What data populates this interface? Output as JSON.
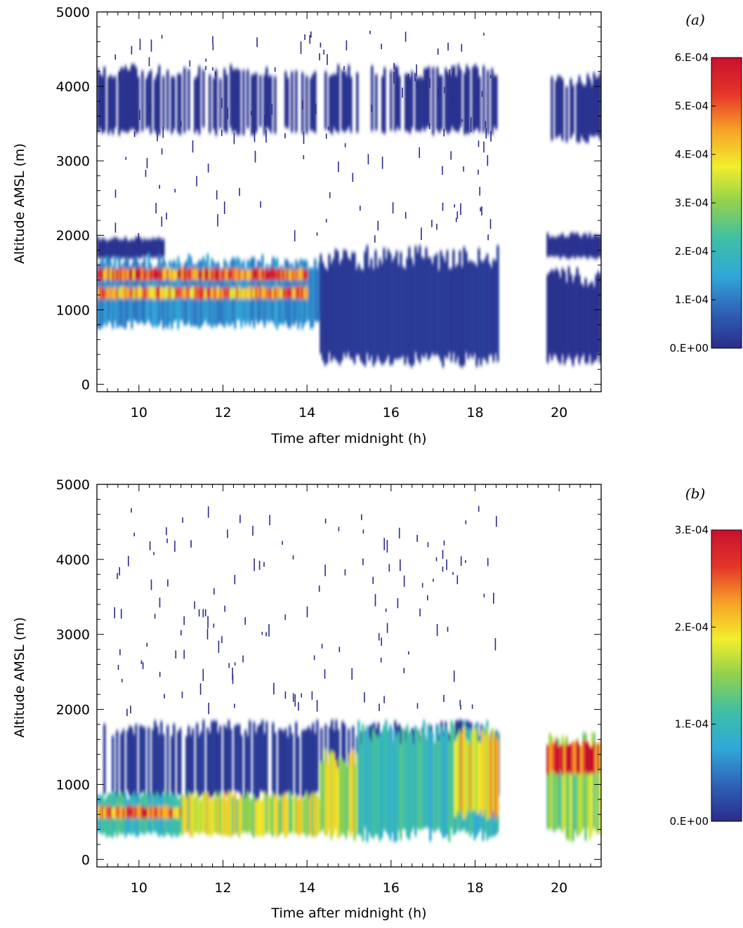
{
  "chart_data": [
    {
      "type": "heatmap",
      "panel_label": "(a)",
      "xlabel": "Time after midnight (h)",
      "ylabel": "Altitude AMSL (m)",
      "xlim": [
        9.0,
        21.0
      ],
      "ylim": [
        -100,
        5000
      ],
      "x_ticks": [
        "10",
        "12",
        "14",
        "16",
        "18",
        "20"
      ],
      "x_tick_values": [
        10,
        12,
        14,
        16,
        18,
        20
      ],
      "y_ticks": [
        "0",
        "1000",
        "2000",
        "3000",
        "4000",
        "5000"
      ],
      "y_tick_values": [
        0,
        1000,
        2000,
        3000,
        4000,
        5000
      ],
      "colorbar": {
        "min": 0.0,
        "max": 0.0006,
        "labels": [
          "0.E+00",
          "1.E-04",
          "2.E-04",
          "3.E-04",
          "4.E-04",
          "5.E-04",
          "6.E-04"
        ],
        "label_values": [
          0,
          0.0001,
          0.0002,
          0.0003,
          0.0004,
          0.0005,
          0.0006
        ],
        "colormap": [
          "#2b2c8a",
          "#2f62b8",
          "#30a8d8",
          "#3dbfa6",
          "#8fd14f",
          "#f2ee2c",
          "#f7a227",
          "#e5352a",
          "#c8102e"
        ]
      },
      "data_gaps_h": [
        [
          18.55,
          19.7
        ]
      ],
      "layers": [
        {
          "x": [
            9.0,
            18.55
          ],
          "y": [
            3400,
            4200
          ],
          "value": 1e-05,
          "structure": "patchy"
        },
        {
          "x": [
            19.7,
            21.0
          ],
          "y": [
            3300,
            4100
          ],
          "value": 1e-05,
          "structure": "patchy"
        },
        {
          "x": [
            9.0,
            10.6
          ],
          "y": [
            1700,
            1950
          ],
          "value": 1e-05
        },
        {
          "x": [
            19.7,
            21.0
          ],
          "y": [
            1700,
            2000
          ],
          "value": 1e-05
        },
        {
          "x": [
            9.0,
            14.3
          ],
          "y": [
            800,
            1650
          ],
          "value": 0.00012
        },
        {
          "x": [
            9.0,
            14.0
          ],
          "y": [
            1400,
            1550
          ],
          "value": 0.00052
        },
        {
          "x": [
            9.0,
            14.0
          ],
          "y": [
            1150,
            1300
          ],
          "value": 0.00045
        },
        {
          "x": [
            14.3,
            18.55
          ],
          "y": [
            330,
            1700
          ],
          "value": 2e-05
        },
        {
          "x": [
            19.7,
            21.0
          ],
          "y": [
            330,
            1450
          ],
          "value": 1e-05
        }
      ]
    },
    {
      "type": "heatmap",
      "panel_label": "(b)",
      "xlabel": "Time after midnight (h)",
      "ylabel": "Altitude AMSL (m)",
      "xlim": [
        9.0,
        21.0
      ],
      "ylim": [
        -100,
        5000
      ],
      "x_ticks": [
        "10",
        "12",
        "14",
        "16",
        "18",
        "20"
      ],
      "x_tick_values": [
        10,
        12,
        14,
        16,
        18,
        20
      ],
      "y_ticks": [
        "0",
        "1000",
        "2000",
        "3000",
        "4000",
        "5000"
      ],
      "y_tick_values": [
        0,
        1000,
        2000,
        3000,
        4000,
        5000
      ],
      "colorbar": {
        "min": 0.0,
        "max": 0.0003,
        "labels": [
          "0.E+00",
          "1.E-04",
          "2.E-04",
          "3.E-04"
        ],
        "label_values": [
          0,
          0.0001,
          0.0002,
          0.0003
        ],
        "colormap": [
          "#2b2c8a",
          "#2f62b8",
          "#30a8d8",
          "#3dbfa6",
          "#8fd14f",
          "#f2ee2c",
          "#f7a227",
          "#e5352a",
          "#c8102e"
        ]
      },
      "data_gaps_h": [
        [
          18.55,
          19.7
        ]
      ],
      "layers": [
        {
          "x": [
            9.0,
            18.55
          ],
          "y": [
            850,
            1750
          ],
          "value": 1e-05,
          "structure": "patchy"
        },
        {
          "x": [
            9.0,
            11.0
          ],
          "y": [
            330,
            850
          ],
          "value": 0.0001
        },
        {
          "x": [
            9.0,
            11.0
          ],
          "y": [
            550,
            700
          ],
          "value": 0.00024
        },
        {
          "x": [
            11.0,
            14.3
          ],
          "y": [
            330,
            850
          ],
          "value": 0.00017
        },
        {
          "x": [
            14.3,
            15.2
          ],
          "y": [
            330,
            1350
          ],
          "value": 0.00017
        },
        {
          "x": [
            15.2,
            18.55
          ],
          "y": [
            330,
            1700
          ],
          "value": 0.0001
        },
        {
          "x": [
            17.5,
            18.55
          ],
          "y": [
            600,
            1650
          ],
          "value": 0.0002
        },
        {
          "x": [
            19.7,
            21.0
          ],
          "y": [
            330,
            1550
          ],
          "value": 0.00015
        },
        {
          "x": [
            19.7,
            21.0
          ],
          "y": [
            1150,
            1550
          ],
          "value": 0.00028
        }
      ]
    }
  ]
}
